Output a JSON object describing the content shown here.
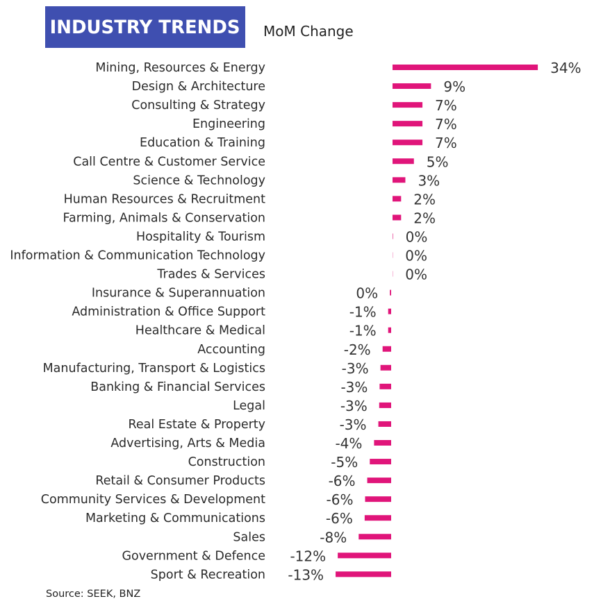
{
  "header": {
    "title": "INDUSTRY TRENDS",
    "subtitle": "MoM Change"
  },
  "source": "Source: SEEK, BNZ",
  "colors": {
    "bar": "#e0157a",
    "title_bg": "#3f4fb0",
    "title_text": "#ffffff"
  },
  "chart_data": {
    "type": "bar",
    "orientation": "horizontal",
    "title": "INDUSTRY TRENDS",
    "subtitle": "MoM Change",
    "xlabel": "",
    "ylabel": "",
    "unit": "%",
    "xlim": [
      -13,
      34
    ],
    "grid": false,
    "legend": "none",
    "categories": [
      "Mining, Resources & Energy",
      "Design & Architecture",
      "Consulting & Strategy",
      "Engineering",
      "Education & Training",
      "Call Centre & Customer Service",
      "Science & Technology",
      "Human Resources & Recruitment",
      "Farming, Animals & Conservation",
      "Hospitality & Tourism",
      "Information & Communication Technology",
      "Trades & Services",
      "Insurance & Superannuation",
      "Administration & Office Support",
      "Healthcare & Medical",
      "Accounting",
      "Manufacturing, Transport & Logistics",
      "Banking & Financial Services",
      "Legal",
      "Real Estate & Property",
      "Advertising, Arts & Media",
      "Construction",
      "Retail & Consumer Products",
      "Community Services & Development",
      "Marketing & Communications",
      "Sales",
      "Government & Defence",
      "Sport & Recreation"
    ],
    "values": [
      34,
      9,
      7,
      7,
      7,
      5,
      3,
      2,
      2,
      0.1,
      0.05,
      0.05,
      -0.3,
      -0.7,
      -0.7,
      -2,
      -2.5,
      -2.7,
      -2.8,
      -3,
      -4,
      -5,
      -5.6,
      -6.1,
      -6.2,
      -7.6,
      -12.5,
      -13
    ],
    "data_labels": [
      "34%",
      "9%",
      "7%",
      "7%",
      "7%",
      "5%",
      "3%",
      "2%",
      "2%",
      "0%",
      "0%",
      "0%",
      "0%",
      "-1%",
      "-1%",
      "-2%",
      "-3%",
      "-3%",
      "-3%",
      "-3%",
      "-4%",
      "-5%",
      "-6%",
      "-6%",
      "-6%",
      "-8%",
      "-12%",
      "-13%"
    ]
  }
}
